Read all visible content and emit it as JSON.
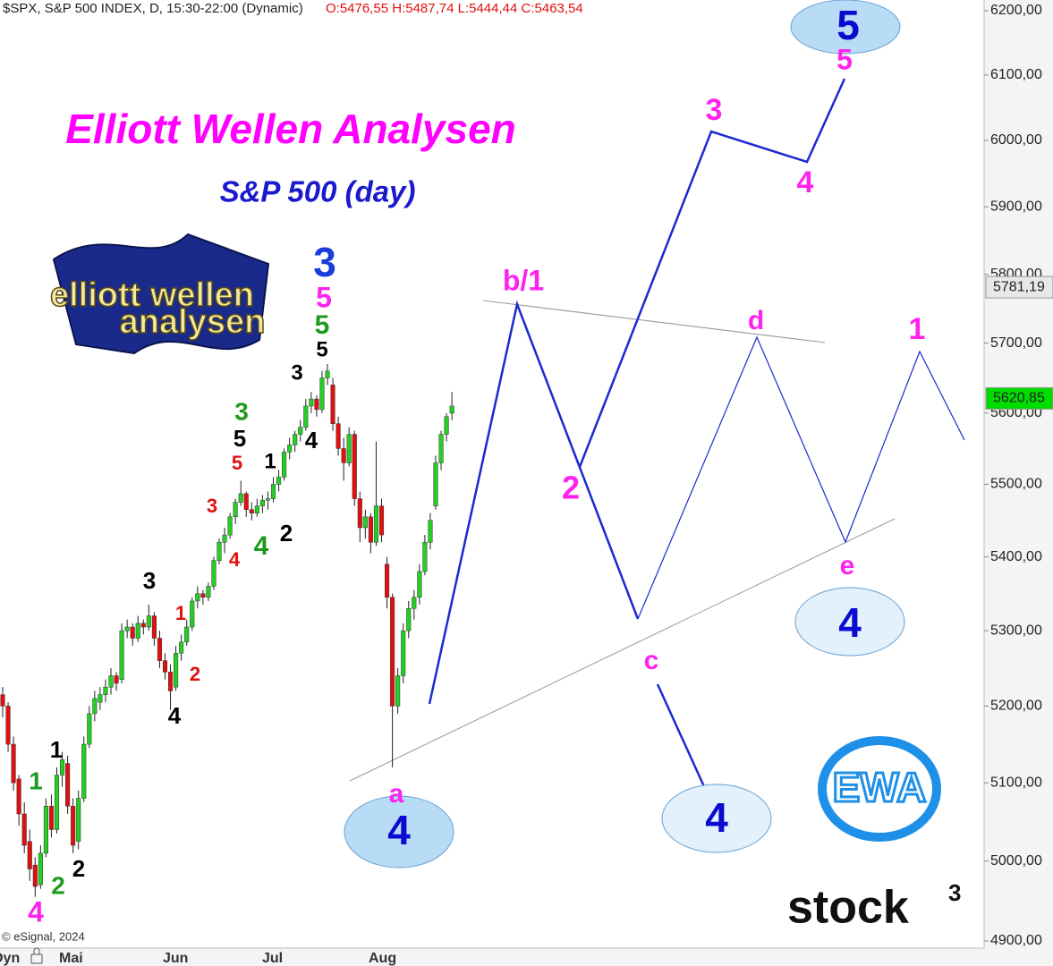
{
  "header": {
    "instrument": "$SPX, S&P 500 INDEX, D, 15:30-22:00 (Dynamic)",
    "ohlc_text": "O:5476,55 H:5487,74 L:5444,44 C:5463,54"
  },
  "copyright": "© eSignal, 2024",
  "time_axis": {
    "mode": "Dyn",
    "months": [
      "Mai",
      "Jun",
      "Jul",
      "Aug"
    ]
  },
  "logos": {
    "flag_line1": "elliott wellen",
    "flag_line2": "analysen",
    "badge": "EWA",
    "brand": "stock",
    "brand_sup": "3"
  },
  "chart_data": {
    "type": "candlestick",
    "title": "Elliott Wellen Analysen",
    "subtitle": "S&P 500 (day)",
    "log_scale": true,
    "ylim": [
      4900,
      6200
    ],
    "yticks": [
      {
        "value": 4900,
        "label": "4900,00"
      },
      {
        "value": 5000,
        "label": "5000,00"
      },
      {
        "value": 5100,
        "label": "5100,00"
      },
      {
        "value": 5200,
        "label": "5200,00"
      },
      {
        "value": 5300,
        "label": "5300,00"
      },
      {
        "value": 5400,
        "label": "5400,00"
      },
      {
        "value": 5500,
        "label": "5500,00"
      },
      {
        "value": 5600,
        "label": "5600,00"
      },
      {
        "value": 5700,
        "label": "5700,00"
      },
      {
        "value": 5800,
        "label": "5800,00"
      },
      {
        "value": 5900,
        "label": "5900,00"
      },
      {
        "value": 6000,
        "label": "6000,00"
      },
      {
        "value": 6100,
        "label": "6100,00"
      },
      {
        "value": 6200,
        "label": "6200,00"
      }
    ],
    "up_color": "#22d022",
    "down_color": "#e01010",
    "price_markers": [
      {
        "value": 5781.19,
        "label": "5781,19",
        "color": "#e8e8e8"
      },
      {
        "value": 5620.85,
        "label": "5620,85",
        "color": "#00dd00"
      }
    ],
    "ohlc": [
      [
        5215,
        5225,
        5185,
        5200
      ],
      [
        5200,
        5205,
        5140,
        5150
      ],
      [
        5150,
        5160,
        5090,
        5100
      ],
      [
        5105,
        5110,
        5045,
        5060
      ],
      [
        5060,
        5075,
        5010,
        5020
      ],
      [
        5025,
        5040,
        4975,
        4990
      ],
      [
        4995,
        5005,
        4955,
        4968
      ],
      [
        4970,
        5020,
        4965,
        5010
      ],
      [
        5010,
        5080,
        5005,
        5070
      ],
      [
        5070,
        5085,
        5030,
        5040
      ],
      [
        5040,
        5120,
        5035,
        5110
      ],
      [
        5110,
        5140,
        5095,
        5130
      ],
      [
        5125,
        5135,
        5060,
        5070
      ],
      [
        5070,
        5080,
        5010,
        5020
      ],
      [
        5025,
        5090,
        5015,
        5080
      ],
      [
        5080,
        5160,
        5075,
        5150
      ],
      [
        5150,
        5200,
        5145,
        5190
      ],
      [
        5190,
        5220,
        5180,
        5210
      ],
      [
        5205,
        5225,
        5195,
        5215
      ],
      [
        5215,
        5235,
        5205,
        5225
      ],
      [
        5225,
        5250,
        5215,
        5240
      ],
      [
        5240,
        5245,
        5220,
        5230
      ],
      [
        5235,
        5310,
        5230,
        5300
      ],
      [
        5300,
        5315,
        5290,
        5305
      ],
      [
        5305,
        5310,
        5280,
        5290
      ],
      [
        5290,
        5320,
        5285,
        5310
      ],
      [
        5310,
        5315,
        5295,
        5305
      ],
      [
        5305,
        5335,
        5300,
        5320
      ],
      [
        5320,
        5325,
        5280,
        5290
      ],
      [
        5290,
        5300,
        5250,
        5260
      ],
      [
        5260,
        5270,
        5235,
        5245
      ],
      [
        5245,
        5255,
        5195,
        5220
      ],
      [
        5225,
        5280,
        5220,
        5270
      ],
      [
        5270,
        5295,
        5260,
        5285
      ],
      [
        5285,
        5315,
        5280,
        5305
      ],
      [
        5305,
        5345,
        5300,
        5340
      ],
      [
        5340,
        5360,
        5330,
        5350
      ],
      [
        5350,
        5355,
        5335,
        5345
      ],
      [
        5345,
        5365,
        5340,
        5360
      ],
      [
        5360,
        5400,
        5355,
        5395
      ],
      [
        5395,
        5425,
        5390,
        5420
      ],
      [
        5420,
        5440,
        5405,
        5430
      ],
      [
        5430,
        5460,
        5425,
        5455
      ],
      [
        5455,
        5480,
        5445,
        5475
      ],
      [
        5475,
        5505,
        5470,
        5487
      ],
      [
        5487,
        5490,
        5455,
        5465
      ],
      [
        5465,
        5475,
        5450,
        5460
      ],
      [
        5460,
        5480,
        5455,
        5470
      ],
      [
        5470,
        5485,
        5460,
        5478
      ],
      [
        5478,
        5490,
        5465,
        5480
      ],
      [
        5480,
        5510,
        5475,
        5500
      ],
      [
        5500,
        5520,
        5490,
        5510
      ],
      [
        5510,
        5550,
        5505,
        5545
      ],
      [
        5545,
        5565,
        5535,
        5555
      ],
      [
        5555,
        5575,
        5545,
        5570
      ],
      [
        5570,
        5590,
        5560,
        5580
      ],
      [
        5580,
        5620,
        5575,
        5610
      ],
      [
        5610,
        5630,
        5600,
        5620
      ],
      [
        5620,
        5625,
        5595,
        5605
      ],
      [
        5605,
        5660,
        5600,
        5650
      ],
      [
        5650,
        5670,
        5640,
        5660
      ],
      [
        5640,
        5650,
        5575,
        5585
      ],
      [
        5585,
        5595,
        5540,
        5550
      ],
      [
        5550,
        5565,
        5505,
        5530
      ],
      [
        5530,
        5580,
        5525,
        5570
      ],
      [
        5570,
        5575,
        5470,
        5480
      ],
      [
        5480,
        5490,
        5420,
        5440
      ],
      [
        5440,
        5465,
        5425,
        5455
      ],
      [
        5455,
        5460,
        5405,
        5420
      ],
      [
        5420,
        5560,
        5415,
        5470
      ],
      [
        5470,
        5480,
        5420,
        5430
      ],
      [
        5390,
        5400,
        5330,
        5345
      ],
      [
        5345,
        5350,
        5120,
        5200
      ],
      [
        5200,
        5250,
        5190,
        5240
      ],
      [
        5240,
        5310,
        5230,
        5300
      ],
      [
        5300,
        5340,
        5290,
        5330
      ],
      [
        5330,
        5355,
        5315,
        5345
      ],
      [
        5345,
        5390,
        5335,
        5380
      ],
      [
        5380,
        5430,
        5375,
        5420
      ],
      [
        5420,
        5460,
        5410,
        5450
      ],
      [
        5470,
        5540,
        5465,
        5530
      ],
      [
        5530,
        5575,
        5520,
        5570
      ],
      [
        5570,
        5600,
        5560,
        5595
      ],
      [
        5600,
        5630,
        5590,
        5610
      ]
    ],
    "annotations": [
      {
        "text": "4",
        "color": "#ff22ee"
      },
      {
        "text": "1",
        "color": "#1e9b1e"
      },
      {
        "text": "1",
        "color": "#000000"
      },
      {
        "text": "2",
        "color": "#1e9b1e"
      },
      {
        "text": "2",
        "color": "#000000"
      },
      {
        "text": "3",
        "color": "#000000"
      },
      {
        "text": "1",
        "color": "#e01010"
      },
      {
        "text": "2",
        "color": "#e01010"
      },
      {
        "text": "4",
        "color": "#000000"
      },
      {
        "text": "3",
        "color": "#e01010"
      },
      {
        "text": "4",
        "color": "#e01010"
      },
      {
        "text": "5",
        "color": "#e01010"
      },
      {
        "text": "5",
        "color": "#000000"
      },
      {
        "text": "3",
        "color": "#1e9b1e"
      },
      {
        "text": "1",
        "color": "#000000"
      },
      {
        "text": "2",
        "color": "#000000"
      },
      {
        "text": "4",
        "color": "#1e9b1e"
      },
      {
        "text": "3",
        "color": "#000000"
      },
      {
        "text": "4",
        "color": "#000000"
      },
      {
        "text": "5",
        "color": "#000000"
      },
      {
        "text": "5",
        "color": "#1e9b1e"
      },
      {
        "text": "5",
        "color": "#ff22ee"
      },
      {
        "text": "3",
        "color": "#1a3cd8"
      },
      {
        "text": "a",
        "color": "#ff22ee"
      },
      {
        "text": "4",
        "color": "#0a0ad0"
      },
      {
        "text": "b/1",
        "color": "#ff22ee"
      },
      {
        "text": "2",
        "color": "#ff22ee"
      },
      {
        "text": "c",
        "color": "#ff22ee"
      },
      {
        "text": "4",
        "color": "#0a0ad0"
      },
      {
        "text": "d",
        "color": "#ff22ee"
      },
      {
        "text": "3",
        "color": "#ff22ee"
      },
      {
        "text": "4",
        "color": "#ff22ee"
      },
      {
        "text": "5",
        "color": "#ff22ee"
      },
      {
        "text": "5",
        "color": "#0a0ad0"
      },
      {
        "text": "e",
        "color": "#ff22ee"
      },
      {
        "text": "4",
        "color": "#0a0ad0"
      },
      {
        "text": "1",
        "color": "#ff22ee"
      }
    ]
  }
}
